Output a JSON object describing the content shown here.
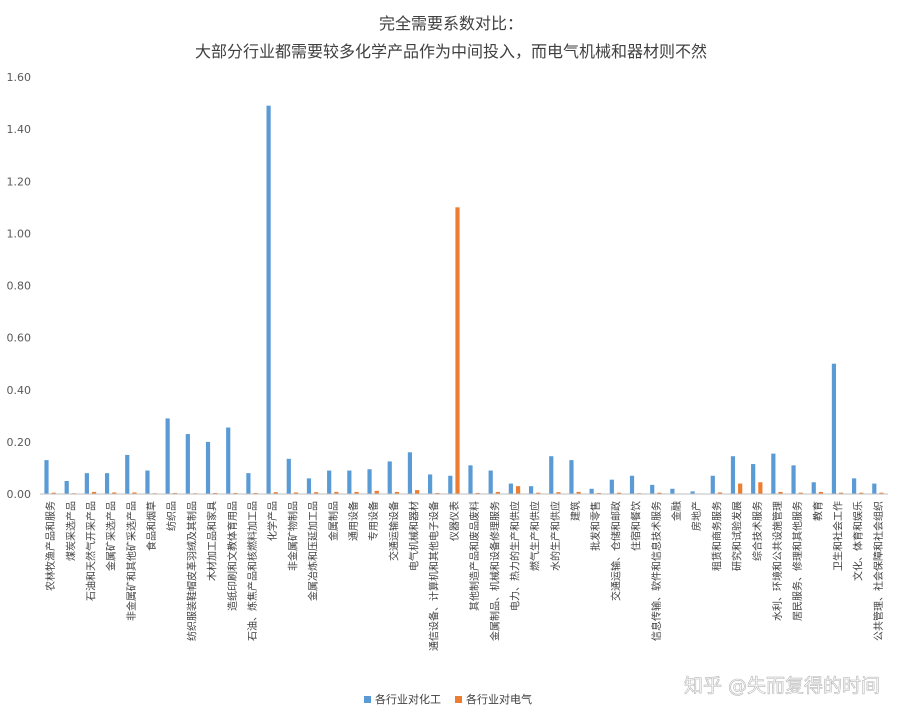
{
  "chart_data": {
    "type": "bar",
    "title": "完全需要系数对比：",
    "subtitle": "大部分行业都需要较多化学产品作为中间投入，而电气机械和器材则不然",
    "xlabel": "",
    "ylabel": "",
    "ylim": [
      0,
      1.6
    ],
    "yticks": [
      "0.00",
      "0.20",
      "0.40",
      "0.60",
      "0.80",
      "1.00",
      "1.20",
      "1.40",
      "1.60"
    ],
    "grid": false,
    "legend": "bottom",
    "categories": [
      "农林牧渔产品和服务",
      "煤炭采选产品",
      "石油和天然气开采产品",
      "金属矿采选产品",
      "非金属矿和其他矿采选产品",
      "食品和烟草",
      "纺织品",
      "纺织服装鞋帽皮革羽绒及其制品",
      "木材加工品和家具",
      "造纸印刷和文教体育用品",
      "石油、炼焦产品和核燃料加工品",
      "化学产品",
      "非金属矿物制品",
      "金属冶炼和压延加工品",
      "金属制品",
      "通用设备",
      "专用设备",
      "交通运输设备",
      "电气机械和器材",
      "通信设备、计算机和其他电子设备",
      "仪器仪表",
      "其他制造产品和废品废料",
      "金属制品、机械和设备修理服务",
      "电力、热力的生产和供应",
      "燃气生产和供应",
      "水的生产和供应",
      "建筑",
      "批发和零售",
      "交通运输、仓储和邮政",
      "住宿和餐饮",
      "信息传输、软件和信息技术服务",
      "金融",
      "房地产",
      "租赁和商务服务",
      "研究和试验发展",
      "综合技术服务",
      "水利、环境和公共设施管理",
      "居民服务、修理和其他服务",
      "教育",
      "卫生和社会工作",
      "文化、体育和娱乐",
      "公共管理、社会保障和社会组织"
    ],
    "series": [
      {
        "name": "各行业对化工",
        "color": "#5b9bd5",
        "values": [
          0.13,
          0.05,
          0.08,
          0.08,
          0.15,
          0.09,
          0.29,
          0.23,
          0.2,
          0.255,
          0.08,
          1.49,
          0.135,
          0.06,
          0.09,
          0.09,
          0.095,
          0.125,
          0.16,
          0.075,
          0.07,
          0.11,
          0.09,
          0.04,
          0.03,
          0.145,
          0.13,
          0.02,
          0.055,
          0.07,
          0.035,
          0.02,
          0.01,
          0.07,
          0.145,
          0.115,
          0.155,
          0.11,
          0.045,
          0.5,
          0.06,
          0.04
        ]
      },
      {
        "name": "各行业对电气",
        "color": "#ed7d31",
        "values": [
          0.005,
          0.003,
          0.008,
          0.006,
          0.006,
          0.003,
          0.004,
          0.003,
          0.004,
          0.004,
          0.004,
          0.007,
          0.006,
          0.007,
          0.008,
          0.008,
          0.012,
          0.008,
          0.015,
          0.004,
          1.1,
          0.004,
          0.008,
          0.03,
          0.005,
          0.007,
          0.008,
          0.004,
          0.005,
          0.003,
          0.005,
          0.002,
          0.002,
          0.006,
          0.04,
          0.045,
          0.008,
          0.005,
          0.008,
          0.005,
          0.005,
          0.005
        ]
      }
    ]
  },
  "watermark": "知乎 @失而复得的时间"
}
